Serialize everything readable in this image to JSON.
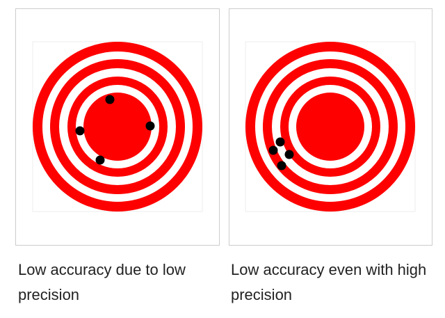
{
  "panels": [
    {
      "caption": "Low accuracy due to low precision"
    },
    {
      "caption": "Low accuracy even with high precision"
    }
  ]
}
